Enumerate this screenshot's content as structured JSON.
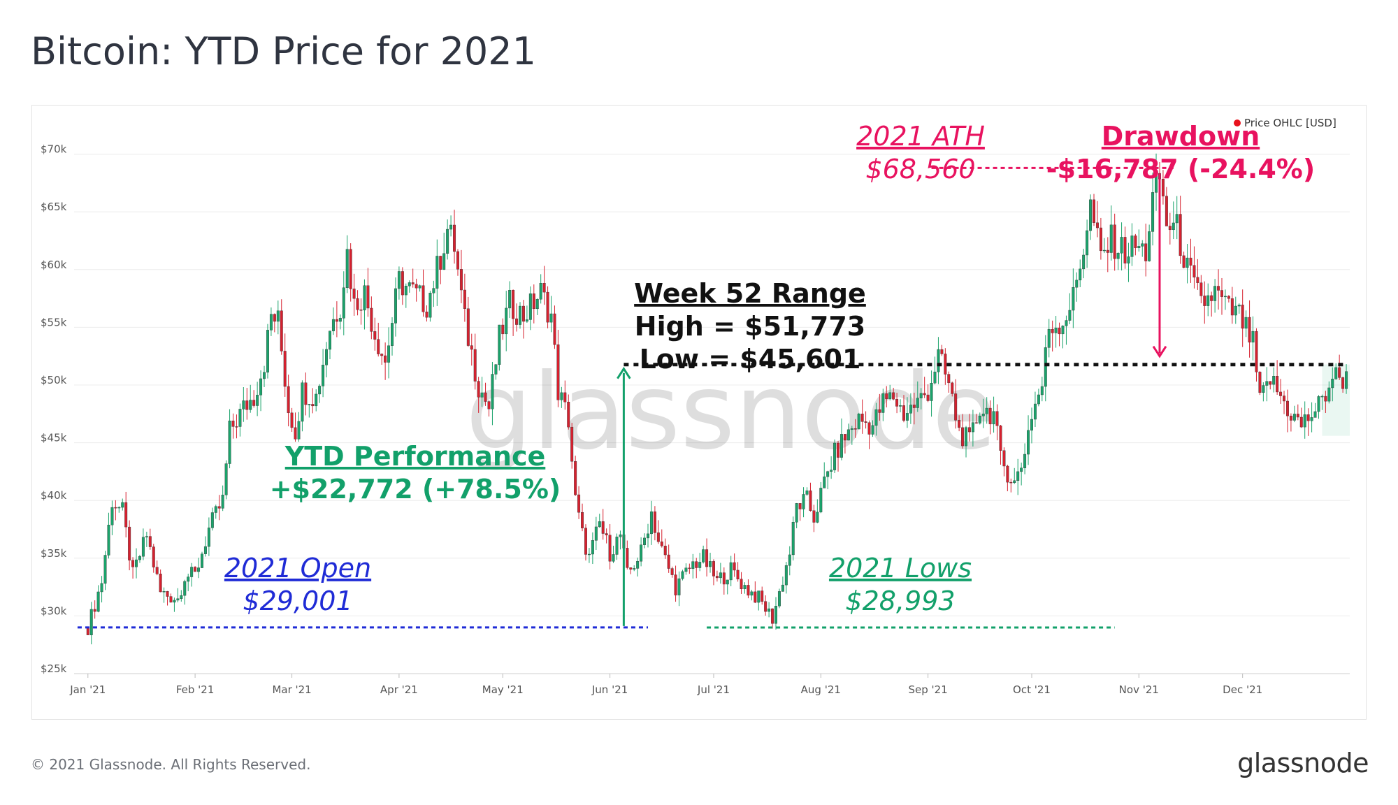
{
  "title": "Bitcoin: YTD Price for 2021",
  "footer": {
    "copyright": "© 2021 Glassnode. All Rights Reserved.",
    "logo": "glassnode"
  },
  "watermark": "glassnode",
  "colors": {
    "up": "#1aa36b",
    "down": "#d6212f",
    "blue": "#1f2bd6",
    "green": "#12a06a",
    "pink": "#e8125f",
    "black": "#111111"
  },
  "chart_data": {
    "type": "candlestick",
    "legend": {
      "label": "Price OHLC [USD]",
      "position": "top-right"
    },
    "ylim": [
      25000,
      73000
    ],
    "y_ticks": [
      {
        "value": 25000,
        "label": "$25k"
      },
      {
        "value": 30000,
        "label": "$30k"
      },
      {
        "value": 35000,
        "label": "$35k"
      },
      {
        "value": 40000,
        "label": "$40k"
      },
      {
        "value": 45000,
        "label": "$45k"
      },
      {
        "value": 50000,
        "label": "$50k"
      },
      {
        "value": 55000,
        "label": "$55k"
      },
      {
        "value": 60000,
        "label": "$60k"
      },
      {
        "value": 65000,
        "label": "$65k"
      },
      {
        "value": 70000,
        "label": "$70k"
      }
    ],
    "x_ticks": [
      {
        "day": 0,
        "label": "Jan '21"
      },
      {
        "day": 31,
        "label": "Feb '21"
      },
      {
        "day": 59,
        "label": "Mar '21"
      },
      {
        "day": 90,
        "label": "Apr '21"
      },
      {
        "day": 120,
        "label": "May '21"
      },
      {
        "day": 151,
        "label": "Jun '21"
      },
      {
        "day": 181,
        "label": "Jul '21"
      },
      {
        "day": 212,
        "label": "Aug '21"
      },
      {
        "day": 243,
        "label": "Sep '21"
      },
      {
        "day": 273,
        "label": "Oct '21"
      },
      {
        "day": 304,
        "label": "Nov '21"
      },
      {
        "day": 334,
        "label": "Dec '21"
      }
    ],
    "day_range": [
      -4,
      365
    ],
    "price_keypoints": [
      [
        0,
        29001
      ],
      [
        4,
        33000
      ],
      [
        7,
        40000
      ],
      [
        10,
        39000
      ],
      [
        13,
        33500
      ],
      [
        17,
        37000
      ],
      [
        21,
        32000
      ],
      [
        26,
        31500
      ],
      [
        28,
        33500
      ],
      [
        31,
        33500
      ],
      [
        35,
        37500
      ],
      [
        39,
        40000
      ],
      [
        41,
        46000
      ],
      [
        45,
        48000
      ],
      [
        48,
        49000
      ],
      [
        51,
        52000
      ],
      [
        53,
        56000
      ],
      [
        55,
        55500
      ],
      [
        58,
        48000
      ],
      [
        60,
        46000
      ],
      [
        62,
        49500
      ],
      [
        66,
        49000
      ],
      [
        70,
        55000
      ],
      [
        73,
        57000
      ],
      [
        75,
        61500
      ],
      [
        77,
        57000
      ],
      [
        80,
        58000
      ],
      [
        83,
        54500
      ],
      [
        86,
        52000
      ],
      [
        88,
        55500
      ],
      [
        90,
        59000
      ],
      [
        94,
        58000
      ],
      [
        98,
        57000
      ],
      [
        101,
        60000
      ],
      [
        104,
        63500
      ],
      [
        106,
        62000
      ],
      [
        109,
        55500
      ],
      [
        113,
        50000
      ],
      [
        116,
        48000
      ],
      [
        119,
        54000
      ],
      [
        122,
        57000
      ],
      [
        126,
        56000
      ],
      [
        131,
        58000
      ],
      [
        134,
        56000
      ],
      [
        136,
        49500
      ],
      [
        139,
        47000
      ],
      [
        141,
        40000
      ],
      [
        143,
        37000
      ],
      [
        145,
        35000
      ],
      [
        148,
        38000
      ],
      [
        151,
        35500
      ],
      [
        154,
        37000
      ],
      [
        156,
        33500
      ],
      [
        160,
        35500
      ],
      [
        163,
        39000
      ],
      [
        165,
        36500
      ],
      [
        170,
        32500
      ],
      [
        175,
        34500
      ],
      [
        178,
        35000
      ],
      [
        182,
        33000
      ],
      [
        186,
        34000
      ],
      [
        190,
        32500
      ],
      [
        194,
        31500
      ],
      [
        198,
        29800
      ],
      [
        200,
        32000
      ],
      [
        203,
        35500
      ],
      [
        205,
        39500
      ],
      [
        208,
        40000
      ],
      [
        210,
        38500
      ],
      [
        213,
        41500
      ],
      [
        216,
        44000
      ],
      [
        219,
        45500
      ],
      [
        223,
        47000
      ],
      [
        227,
        46500
      ],
      [
        230,
        48500
      ],
      [
        233,
        49000
      ],
      [
        236,
        47500
      ],
      [
        240,
        48500
      ],
      [
        243,
        49500
      ],
      [
        246,
        52500
      ],
      [
        249,
        50000
      ],
      [
        252,
        46000
      ],
      [
        255,
        45000
      ],
      [
        258,
        48000
      ],
      [
        262,
        47500
      ],
      [
        264,
        43500
      ],
      [
        266,
        42500
      ],
      [
        268,
        41500
      ],
      [
        270,
        43000
      ],
      [
        273,
        47500
      ],
      [
        276,
        50000
      ],
      [
        278,
        55000
      ],
      [
        282,
        55500
      ],
      [
        285,
        57500
      ],
      [
        288,
        62000
      ],
      [
        290,
        65500
      ],
      [
        293,
        61000
      ],
      [
        296,
        62500
      ],
      [
        300,
        61500
      ],
      [
        303,
        62000
      ],
      [
        306,
        61500
      ],
      [
        308,
        66000
      ],
      [
        310,
        68000
      ],
      [
        312,
        64000
      ],
      [
        315,
        63500
      ],
      [
        318,
        60000
      ],
      [
        322,
        57000
      ],
      [
        326,
        58000
      ],
      [
        330,
        56500
      ],
      [
        333,
        56000
      ],
      [
        337,
        53500
      ],
      [
        339,
        48500
      ],
      [
        342,
        50500
      ],
      [
        345,
        49000
      ],
      [
        348,
        47500
      ],
      [
        351,
        46500
      ],
      [
        354,
        47500
      ],
      [
        357,
        48500
      ],
      [
        360,
        50800
      ],
      [
        364,
        50500
      ]
    ],
    "annotations": {
      "open": {
        "lines": [
          "2021 Open",
          "$29,001"
        ],
        "value": 29001
      },
      "lows": {
        "lines": [
          "2021 Lows",
          "$28,993"
        ],
        "value": 28993
      },
      "ytd": {
        "lines": [
          "YTD Performance",
          "+$22,772 (+78.5%)"
        ]
      },
      "ath": {
        "lines": [
          "2021 ATH",
          "$68,560"
        ],
        "value": 68560
      },
      "drawdown": {
        "lines": [
          "Drawdown",
          "-$16,787 (-24.4%)"
        ]
      },
      "range": {
        "lines": [
          "Week 52 Range",
          "High = $51,773",
          "Low = $45,601"
        ],
        "high": 51773,
        "low": 45601
      }
    }
  }
}
